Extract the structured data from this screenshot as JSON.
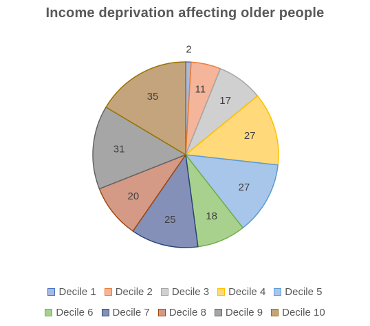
{
  "chart_data": {
    "type": "pie",
    "title": "Income deprivation affecting older people",
    "categories": [
      "Decile 1",
      "Decile 2",
      "Decile 3",
      "Decile 4",
      "Decile 5",
      "Decile 6",
      "Decile 7",
      "Decile 8",
      "Decile 9",
      "Decile 10"
    ],
    "values": [
      2,
      11,
      17,
      27,
      27,
      18,
      25,
      20,
      31,
      35
    ],
    "fill_colors": [
      "#a9b8e0",
      "#f4b59b",
      "#d0d0d0",
      "#ffd97a",
      "#a8c6ea",
      "#a9d18e",
      "#8590b8",
      "#d49a86",
      "#a6a6a6",
      "#c4a47c"
    ],
    "edge_colors": [
      "#4472c4",
      "#ed7d31",
      "#a5a5a5",
      "#ffc000",
      "#5b9bd5",
      "#70ad47",
      "#264478",
      "#9e480e",
      "#636363",
      "#997300"
    ],
    "legend_position": "bottom",
    "data_labels": true
  }
}
